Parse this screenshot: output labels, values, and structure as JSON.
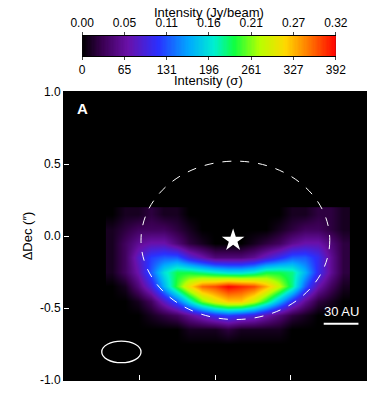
{
  "chart_data": {
    "type": "heatmap",
    "colorbar": {
      "title": "Intensity (Jy/beam)",
      "range": [
        0,
        0.32
      ],
      "ticks": [
        {
          "value": 0,
          "label": "0.00"
        },
        {
          "value": 0.0533,
          "label": "0.05"
        },
        {
          "value": 0.1067,
          "label": "0.11"
        },
        0.16,
        {
          "value": 0.2133,
          "label": "0.21"
        },
        {
          "value": 0.2667,
          "label": "0.27"
        },
        0.32
      ]
    },
    "colorbar2": {
      "title": "Intensity (σ)",
      "range": [
        0,
        392
      ],
      "ticks": [
        0,
        {
          "value": 65.33,
          "label": "65"
        },
        {
          "value": 130.67,
          "label": "131"
        },
        196,
        {
          "value": 261.33,
          "label": "261"
        },
        {
          "value": 326.67,
          "label": "327"
        },
        392
      ]
    },
    "panel_label": "A",
    "y_label": "ΔDec (″)",
    "xlim": [
      -1,
      1
    ],
    "xticks": [
      -1,
      -0.5,
      0,
      0.5,
      1
    ],
    "ylim": [
      -1,
      1
    ],
    "yticks": [
      {
        "value": -1,
        "label": "-1.0"
      },
      {
        "value": -0.5,
        "label": "-0.5"
      },
      {
        "value": 0,
        "label": "0.0"
      },
      {
        "value": 0.5,
        "label": "0.5"
      },
      {
        "value": 1,
        "label": "1.0"
      }
    ],
    "tick_labels": "y",
    "grid": false,
    "x": [
      -0.68,
      -0.595,
      -0.51,
      -0.425,
      -0.34,
      -0.255,
      -0.17,
      -0.085,
      0,
      0.085,
      0.17,
      0.255,
      0.34,
      0.425,
      0.51,
      0.595,
      0.68,
      0.765,
      0.85
    ],
    "y": [
      -0.75,
      -0.65,
      -0.55,
      -0.45,
      -0.35,
      -0.25,
      -0.15,
      -0.05,
      0.05,
      0.15
    ],
    "z": [
      [
        0,
        0,
        0,
        0,
        0,
        0,
        0,
        0,
        0,
        0,
        0,
        0,
        0,
        0,
        0,
        0,
        0,
        0,
        0
      ],
      [
        0,
        0,
        0,
        0,
        0,
        0,
        0.01,
        0.01,
        0.01,
        0.02,
        0.01,
        0.01,
        0.01,
        0.01,
        0,
        0,
        0,
        0,
        0
      ],
      [
        0,
        0,
        0,
        0.01,
        0.02,
        0.03,
        0.05,
        0.07,
        0.09,
        0.1,
        0.09,
        0.08,
        0.06,
        0.04,
        0.02,
        0.01,
        0,
        0,
        0
      ],
      [
        0,
        0,
        0.01,
        0.03,
        0.07,
        0.11,
        0.16,
        0.21,
        0.24,
        0.26,
        0.26,
        0.23,
        0.19,
        0.14,
        0.09,
        0.05,
        0.02,
        0.01,
        0
      ],
      [
        0,
        0.01,
        0.04,
        0.08,
        0.14,
        0.2,
        0.25,
        0.29,
        0.3,
        0.32,
        0.31,
        0.3,
        0.27,
        0.23,
        0.18,
        0.11,
        0.06,
        0.03,
        0.01
      ],
      [
        0.01,
        0.03,
        0.06,
        0.11,
        0.16,
        0.19,
        0.19,
        0.18,
        0.17,
        0.16,
        0.16,
        0.17,
        0.19,
        0.19,
        0.18,
        0.14,
        0.09,
        0.05,
        0.02
      ],
      [
        0.01,
        0.03,
        0.07,
        0.1,
        0.11,
        0.11,
        0.08,
        0.06,
        0.04,
        0.04,
        0.04,
        0.05,
        0.07,
        0.09,
        0.11,
        0.11,
        0.09,
        0.05,
        0.02
      ],
      [
        0.01,
        0.03,
        0.05,
        0.06,
        0.06,
        0.04,
        0.02,
        0.01,
        0,
        0,
        0,
        0.01,
        0.02,
        0.03,
        0.05,
        0.06,
        0.06,
        0.04,
        0.02
      ],
      [
        0.01,
        0.02,
        0.03,
        0.03,
        0.03,
        0.02,
        0.01,
        0,
        0,
        0,
        0,
        0,
        0,
        0.01,
        0.02,
        0.03,
        0.03,
        0.02,
        0.01
      ],
      [
        0,
        0.01,
        0.01,
        0.02,
        0.01,
        0.01,
        0,
        0,
        0,
        0,
        0,
        0,
        0,
        0,
        0.01,
        0.01,
        0.02,
        0.02,
        0.01
      ]
    ],
    "star": {
      "x": 0.12,
      "y": -0.03,
      "marker": "star"
    },
    "ring": {
      "x0": -0.49,
      "x1": 0.76,
      "y0": -0.58,
      "y1": 0.52
    },
    "beam": {
      "x0": -0.75,
      "x1": -0.49,
      "y0": -0.88,
      "y1": -0.73
    },
    "scale_bar": {
      "label": "30 AU",
      "x0": 0.72,
      "x1": 0.95,
      "y": -0.61
    }
  }
}
